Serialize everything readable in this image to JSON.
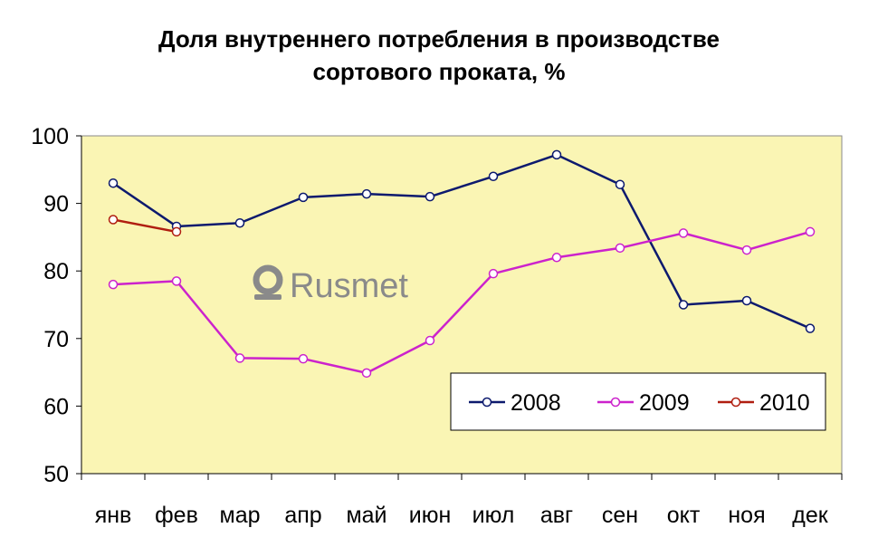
{
  "watermark": {
    "text": "Rusmet",
    "logo_icon": "rusmet-logo-icon"
  },
  "chart_data": {
    "type": "line",
    "title_lines": [
      "Доля внутреннего потребления в производстве",
      "сортового проката, %"
    ],
    "categories": [
      "янв",
      "фев",
      "мар",
      "апр",
      "май",
      "июн",
      "июл",
      "авг",
      "сен",
      "окт",
      "ноя",
      "дек"
    ],
    "ylim": [
      50,
      100
    ],
    "yticks": [
      "50",
      "60",
      "70",
      "80",
      "90",
      "100"
    ],
    "grid": false,
    "plot_background": "#FAF5B4",
    "legend_position": "bottom-right-inside",
    "series": [
      {
        "name": "2008",
        "color": "#0D1A6E",
        "values": [
          93,
          86.6,
          87.1,
          90.9,
          91.4,
          91.0,
          94.0,
          97.2,
          92.8,
          75.0,
          75.6,
          71.5
        ]
      },
      {
        "name": "2009",
        "color": "#CC22CC",
        "values": [
          78.0,
          78.5,
          67.1,
          67.0,
          64.9,
          69.7,
          79.6,
          82.0,
          83.4,
          85.6,
          83.1,
          85.8
        ]
      },
      {
        "name": "2010",
        "color": "#B01E10",
        "values": [
          87.6,
          85.8,
          null,
          null,
          null,
          null,
          null,
          null,
          null,
          null,
          null,
          null
        ]
      }
    ]
  }
}
